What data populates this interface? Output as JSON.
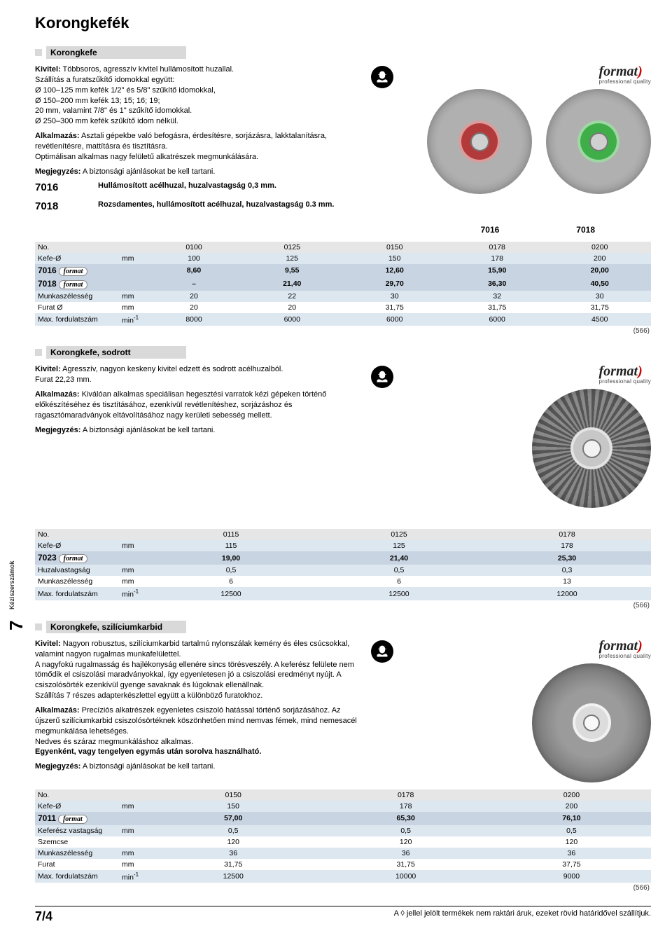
{
  "page": {
    "title": "Korongkefék",
    "sideTab": "Kéziszerszámok",
    "sideNum": "7",
    "pageNum": "7/4",
    "footerNote": "A ◊ jellel jelölt termékek nem raktári áruk, ezeket rövid határidővel szállítjuk."
  },
  "brand": {
    "name": "format",
    "sub": "professional quality",
    "mini": "format"
  },
  "safetyIcon": "face-shield-icon",
  "section1": {
    "title": "Korongkefe",
    "p1a": "Kivitel:",
    "p1b": " Többsoros, agresszív kivitel hullámosított huzallal.\nSzállítás a furatszűkítő idomokkal együtt:\nØ 100–125 mm kefék 1/2\" és 5/8\" szűkítő idomokkal,\nØ 150–200 mm kefék 13; 15; 16; 19;\n20 mm, valamint 7/8\" és 1\" szűkítő idomokkal.\nØ 250–300 mm kefék szűkítő idom nélkül.",
    "p2a": "Alkalmazás:",
    "p2b": " Asztali gépekbe való befogásra, érdesítésre, sorjázásra, lakktalanításra, revétlenítésre, mattításra és tisztításra.\nOptimálisan alkalmas nagy felületű alkatrészek megmunkálására.",
    "p3a": "Megjegyzés:",
    "p3b": " A biztonsági ajánlásokat be kell tartani.",
    "code1": "7016",
    "code1text": "Hullámosított acélhuzal, huzalvastagság 0,3 mm.",
    "code2": "7018",
    "code2text": "Rozsdamentes, hullámosított acélhuzal, huzalvastagság 0.3 mm.",
    "imgLabels": [
      "7016",
      "7018"
    ],
    "wheel1": {
      "outer_d": 150,
      "outer_color": "#b0b0b0",
      "hub_d": 60,
      "hub_color": "#b23a3a",
      "hub_inner": "#d0d0d0"
    },
    "wheel2": {
      "outer_d": 150,
      "outer_color": "#b0b0b0",
      "hub_d": 60,
      "hub_color": "#3fae49",
      "hub_inner": "#d0d0d0"
    }
  },
  "table1": {
    "footRef": "(566)",
    "headers": [
      "No.",
      "",
      "0100",
      "0125",
      "0150",
      "0178",
      "0200"
    ],
    "rows": [
      {
        "cls": "row-lightblue",
        "cells": [
          "Kefe-Ø",
          "mm",
          "100",
          "125",
          "150",
          "178",
          "200"
        ]
      },
      {
        "cls": "row-darkblue row-price",
        "code": "7016",
        "cells": [
          "",
          "",
          "8,60",
          "9,55",
          "12,60",
          "15,90",
          "20,00"
        ]
      },
      {
        "cls": "row-darkblue row-price",
        "code": "7018",
        "cells": [
          "",
          "",
          "–",
          "21,40",
          "29,70",
          "36,30",
          "40,50"
        ]
      },
      {
        "cls": "row-lightblue",
        "cells": [
          "Munkaszélesség",
          "mm",
          "20",
          "22",
          "30",
          "32",
          "30"
        ]
      },
      {
        "cls": "",
        "cells": [
          "Furat Ø",
          "mm",
          "20",
          "20",
          "31,75",
          "31,75",
          "31,75"
        ]
      },
      {
        "cls": "row-lightblue",
        "cells": [
          "Max. fordulatszám",
          "min⁻¹",
          "8000",
          "6000",
          "6000",
          "6000",
          "4500"
        ]
      }
    ]
  },
  "section2": {
    "title": "Korongkefe, sodrott",
    "p1a": "Kivitel:",
    "p1b": " Agresszív, nagyon keskeny kivitel edzett és sodrott acélhuzalból.\nFurat 22,23 mm.",
    "p2a": "Alkalmazás:",
    "p2b": " Kiválóan alkalmas speciálisan hegesztési varratok kézi gépeken történő előkészítéséhez és tisztításához, ezenkívül revétlenítéshez, sorjázáshoz és ragasztómaradványok eltávolításához nagy kerületi sebesség mellett.",
    "p3a": "Megjegyzés:",
    "p3b": " A biztonsági ajánlásokat be kell tartani.",
    "wheel": {
      "outer_d": 170,
      "outer_color": "#8a8a8a",
      "hub_d": 60,
      "hub_color": "#c7c7c7",
      "hub_inner": "#f2f2f2"
    }
  },
  "table2": {
    "footRef": "(566)",
    "headers": [
      "No.",
      "",
      "0115",
      "0125",
      "0178"
    ],
    "rows": [
      {
        "cls": "row-lightblue",
        "cells": [
          "Kefe-Ø",
          "mm",
          "115",
          "125",
          "178"
        ]
      },
      {
        "cls": "row-darkblue row-price",
        "code": "7023",
        "cells": [
          "",
          "",
          "19,00",
          "21,40",
          "25,30"
        ]
      },
      {
        "cls": "row-lightblue",
        "cells": [
          "Huzalvastagság",
          "mm",
          "0,5",
          "0,5",
          "0,3"
        ]
      },
      {
        "cls": "",
        "cells": [
          "Munkaszélesség",
          "mm",
          "6",
          "6",
          "13"
        ]
      },
      {
        "cls": "row-lightblue",
        "cells": [
          "Max. fordulatszám",
          "min⁻¹",
          "12500",
          "12500",
          "12000"
        ]
      }
    ]
  },
  "section3": {
    "title": "Korongkefe, szilíciumkarbid",
    "p1a": "Kivitel:",
    "p1b": " Nagyon robusztus, szilíciumkarbid tartalmú nylonszálak kemény és éles csúcsokkal, valamint nagyon rugalmas munkafelülettel.\nA nagyfokú rugalmasság és hajlékonyság ellenére sincs törésveszély. A keferész felülete nem tömődik el csiszolási maradványokkal, így egyenletesen jó a csiszolási eredményt nyújt. A csiszolósörték ezenkívül gyenge savaknak és lúgoknak ellenállnak.\nSzállítás 7 részes adapterkészlettel együtt a különböző furatokhoz.",
    "p2a": "Alkalmazás:",
    "p2b": " Precíziós alkatrészek egyenletes csiszoló hatással történő sorjázásához. Az újszerű szilíciumkarbid csiszolósörtéknek köszönhetően mind nemvas fémek, mind nemesacél megmunkálása lehetséges.\nNedves és száraz megmunkáláshoz alkalmas.",
    "p2c": "Egyenként, vagy tengelyen egymás után sorolva használható.",
    "p3a": "Megjegyzés:",
    "p3b": " A biztonsági ajánlásokat be kell tartani.",
    "wheel": {
      "outer_d": 170,
      "outer_color": "#9a9a9a",
      "hub_d": 55,
      "hub_color": "#d8d8d8",
      "hub_inner": "#f2f2f2"
    }
  },
  "table3": {
    "footRef": "(566)",
    "headers": [
      "No.",
      "",
      "0150",
      "0178",
      "0200"
    ],
    "rows": [
      {
        "cls": "row-lightblue",
        "cells": [
          "Kefe-Ø",
          "mm",
          "150",
          "178",
          "200"
        ]
      },
      {
        "cls": "row-darkblue row-price",
        "code": "7011",
        "cells": [
          "",
          "",
          "57,00",
          "65,30",
          "76,10"
        ]
      },
      {
        "cls": "row-lightblue",
        "cells": [
          "Keferész vastagság",
          "mm",
          "0,5",
          "0,5",
          "0,5"
        ]
      },
      {
        "cls": "",
        "cells": [
          "Szemcse",
          "",
          "120",
          "120",
          "120"
        ]
      },
      {
        "cls": "row-lightblue",
        "cells": [
          "Munkaszélesség",
          "mm",
          "36",
          "36",
          "36"
        ]
      },
      {
        "cls": "",
        "cells": [
          "Furat",
          "mm",
          "31,75",
          "31,75",
          "37,75"
        ]
      },
      {
        "cls": "row-lightblue",
        "cells": [
          "Max. fordulatszám",
          "min⁻¹",
          "12500",
          "10000",
          "9000"
        ]
      }
    ]
  }
}
